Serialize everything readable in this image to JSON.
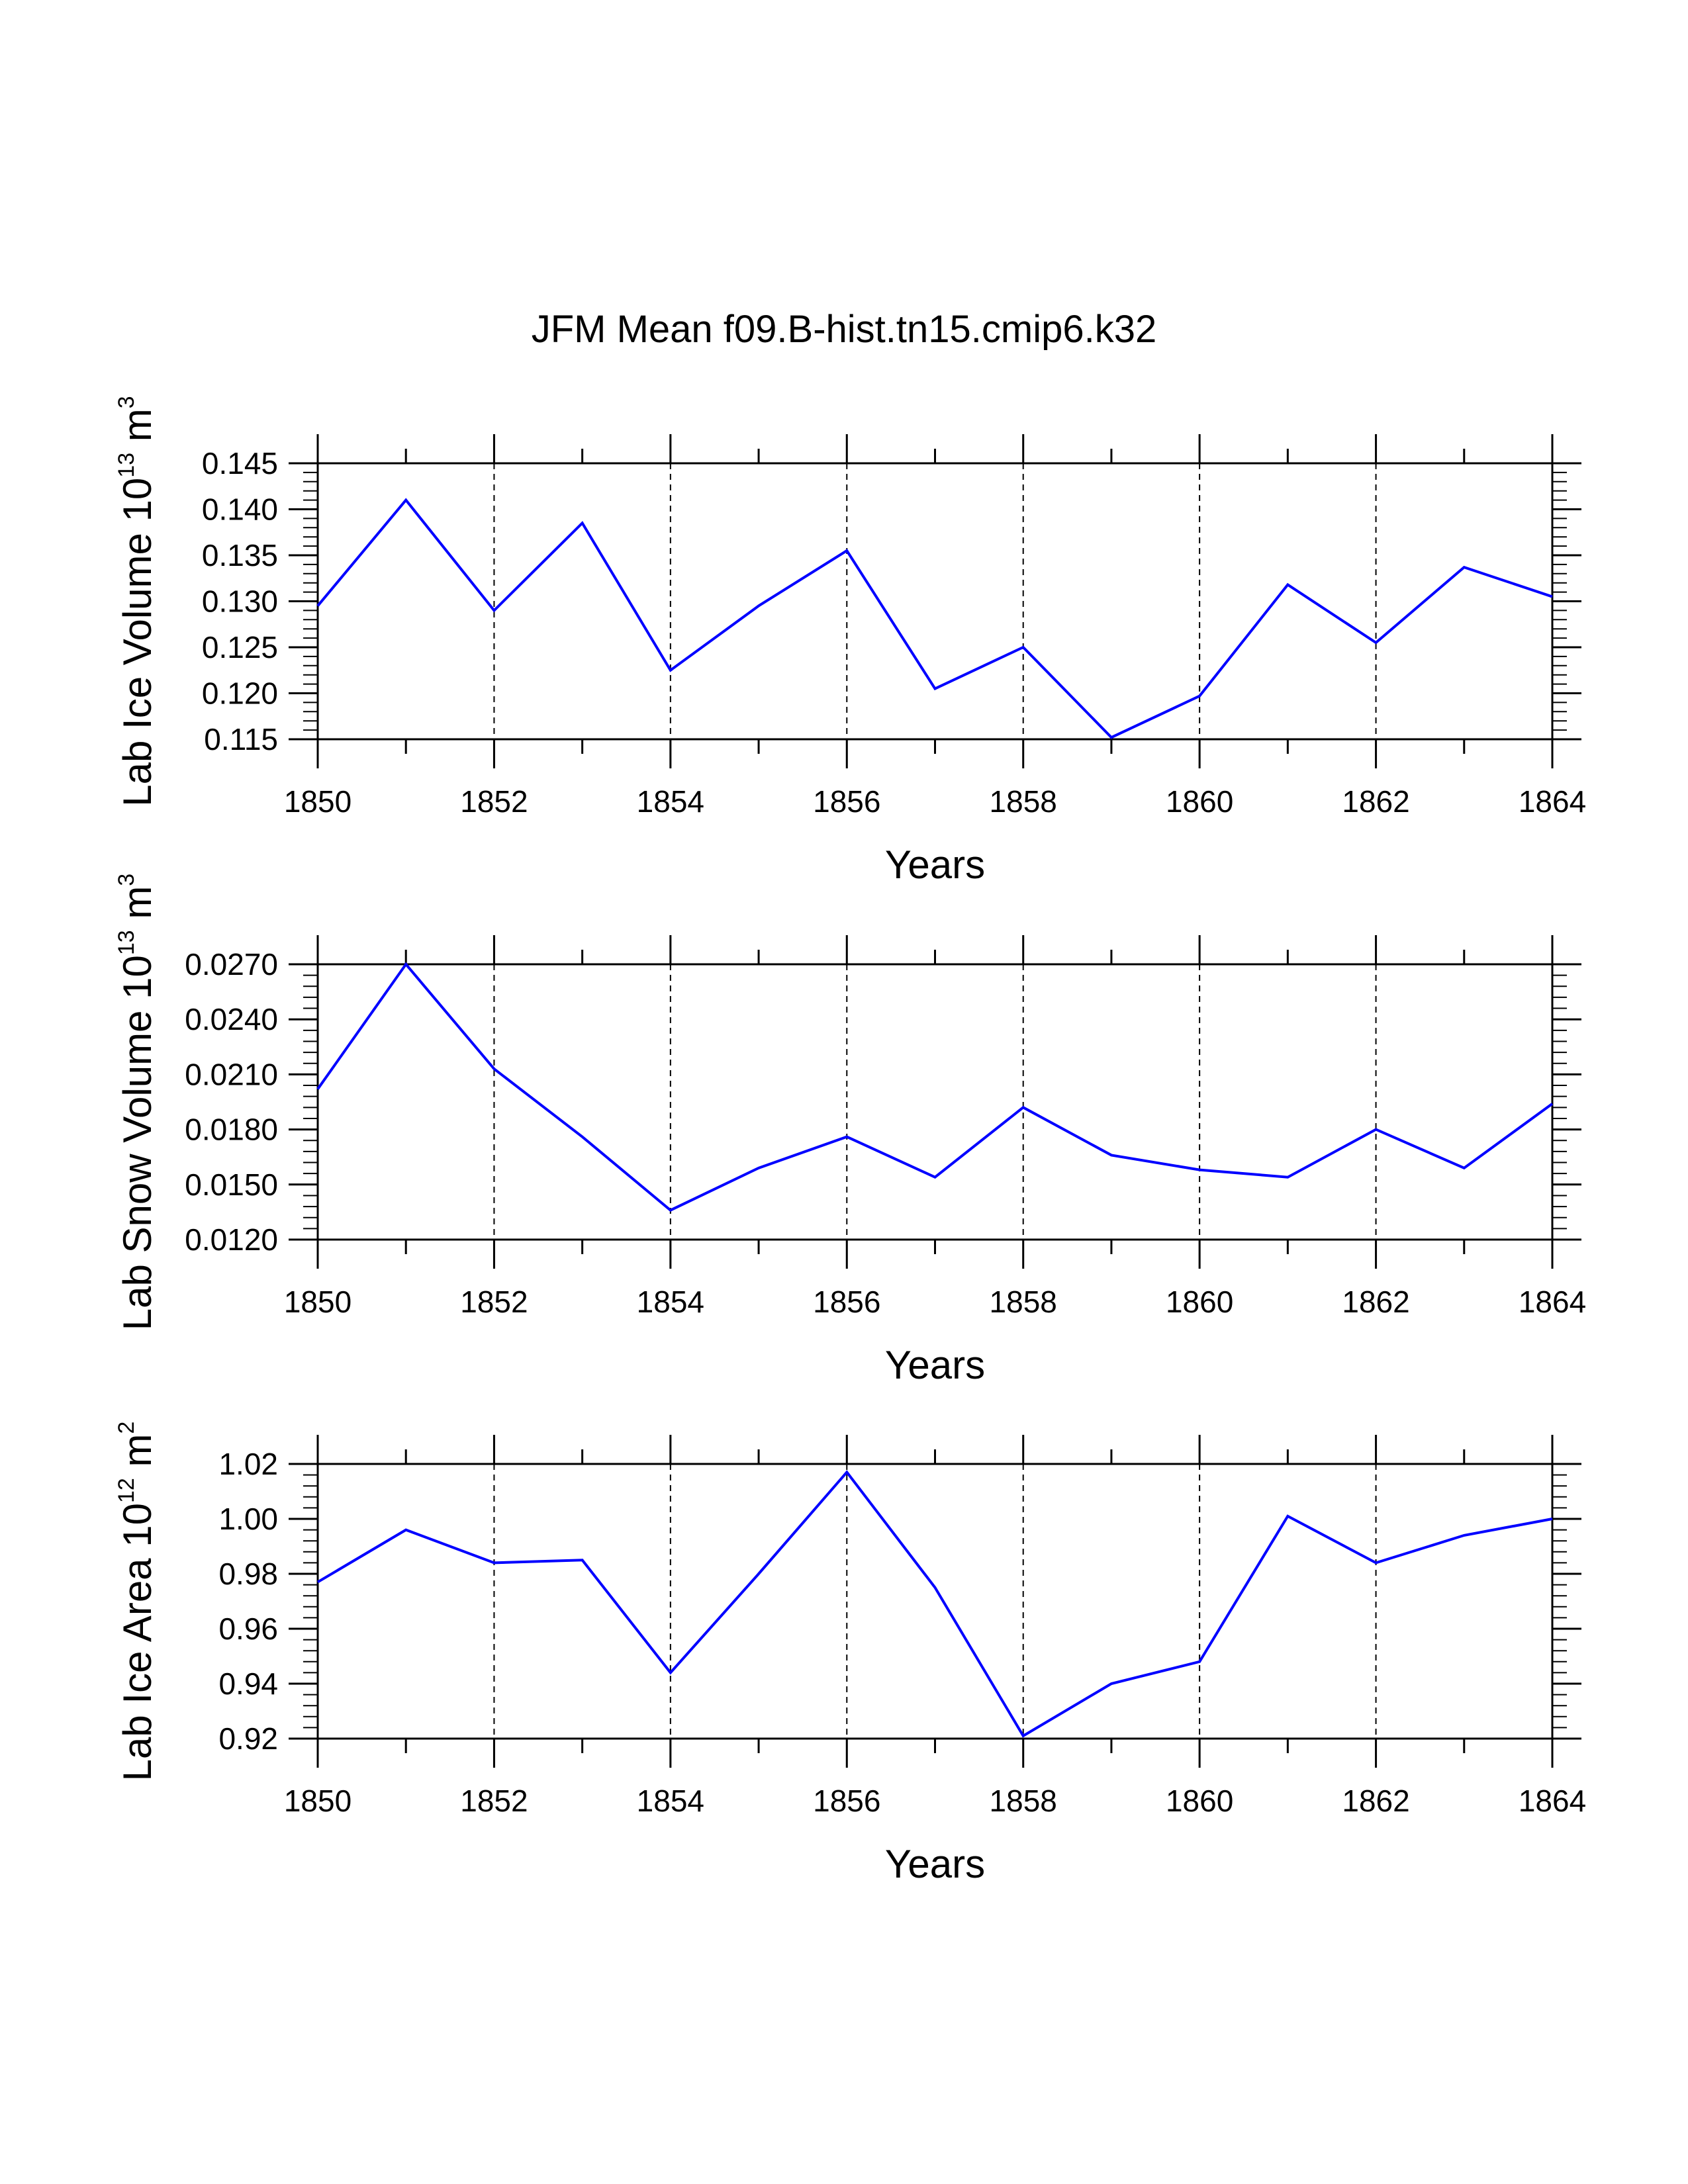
{
  "title": "JFM Mean f09.B-hist.tn15.cmip6.k32",
  "line_color": "#0000FF",
  "chart_data": [
    {
      "type": "line",
      "name": "ice-volume",
      "ylabel": {
        "main": "Lab Ice Volume 10",
        "exponent": "13",
        "unit_base": " m",
        "unit_exponent": "3"
      },
      "xlabel": "Years",
      "x": [
        1850,
        1851,
        1852,
        1853,
        1854,
        1855,
        1856,
        1857,
        1858,
        1859,
        1860,
        1861,
        1862,
        1863,
        1864
      ],
      "values": [
        0.1295,
        0.141,
        0.129,
        0.1385,
        0.1225,
        0.1295,
        0.1355,
        0.1205,
        0.125,
        0.1152,
        0.1197,
        0.1318,
        0.1255,
        0.1337,
        0.1305
      ],
      "xlim": [
        1850,
        1864
      ],
      "ylim": [
        0.115,
        0.145
      ],
      "y_ticks": [
        "0.115",
        "0.120",
        "0.125",
        "0.130",
        "0.135",
        "0.140",
        "0.145"
      ],
      "y_minor_step": 0.001,
      "x_ticks": [
        "1850",
        "1852",
        "1854",
        "1856",
        "1858",
        "1860",
        "1862",
        "1864"
      ],
      "grid": "vertical dashed at labeled years"
    },
    {
      "type": "line",
      "name": "snow-volume",
      "ylabel": {
        "main": "Lab Snow Volume 10",
        "exponent": "13",
        "unit_base": " m",
        "unit_exponent": "3"
      },
      "xlabel": "Years",
      "x": [
        1850,
        1851,
        1852,
        1853,
        1854,
        1855,
        1856,
        1857,
        1858,
        1859,
        1860,
        1861,
        1862,
        1863,
        1864
      ],
      "values": [
        0.0202,
        0.027,
        0.0213,
        0.0176,
        0.0136,
        0.0159,
        0.0176,
        0.0154,
        0.0192,
        0.0166,
        0.0158,
        0.0154,
        0.018,
        0.0159,
        0.0194
      ],
      "xlim": [
        1850,
        1864
      ],
      "ylim": [
        0.012,
        0.027
      ],
      "y_ticks": [
        "0.0120",
        "0.0150",
        "0.0180",
        "0.0210",
        "0.0240",
        "0.0270"
      ],
      "y_minor_step": 0.0006,
      "x_ticks": [
        "1850",
        "1852",
        "1854",
        "1856",
        "1858",
        "1860",
        "1862",
        "1864"
      ],
      "grid": "vertical dashed at labeled years"
    },
    {
      "type": "line",
      "name": "ice-area",
      "ylabel": {
        "main": "Lab Ice Area 10",
        "exponent": "12",
        "unit_base": " m",
        "unit_exponent": "2"
      },
      "xlabel": "Years",
      "x": [
        1850,
        1851,
        1852,
        1853,
        1854,
        1855,
        1856,
        1857,
        1858,
        1859,
        1860,
        1861,
        1862,
        1863,
        1864
      ],
      "values": [
        0.977,
        0.996,
        0.984,
        0.985,
        0.944,
        0.98,
        1.017,
        0.975,
        0.921,
        0.94,
        0.948,
        1.001,
        0.984,
        0.994,
        1.0
      ],
      "xlim": [
        1850,
        1864
      ],
      "ylim": [
        0.92,
        1.02
      ],
      "y_ticks": [
        "0.92",
        "0.94",
        "0.96",
        "0.98",
        "1.00",
        "1.02"
      ],
      "y_minor_step": 0.004,
      "x_ticks": [
        "1850",
        "1852",
        "1854",
        "1856",
        "1858",
        "1860",
        "1862",
        "1864"
      ],
      "grid": "vertical dashed at labeled years"
    }
  ]
}
